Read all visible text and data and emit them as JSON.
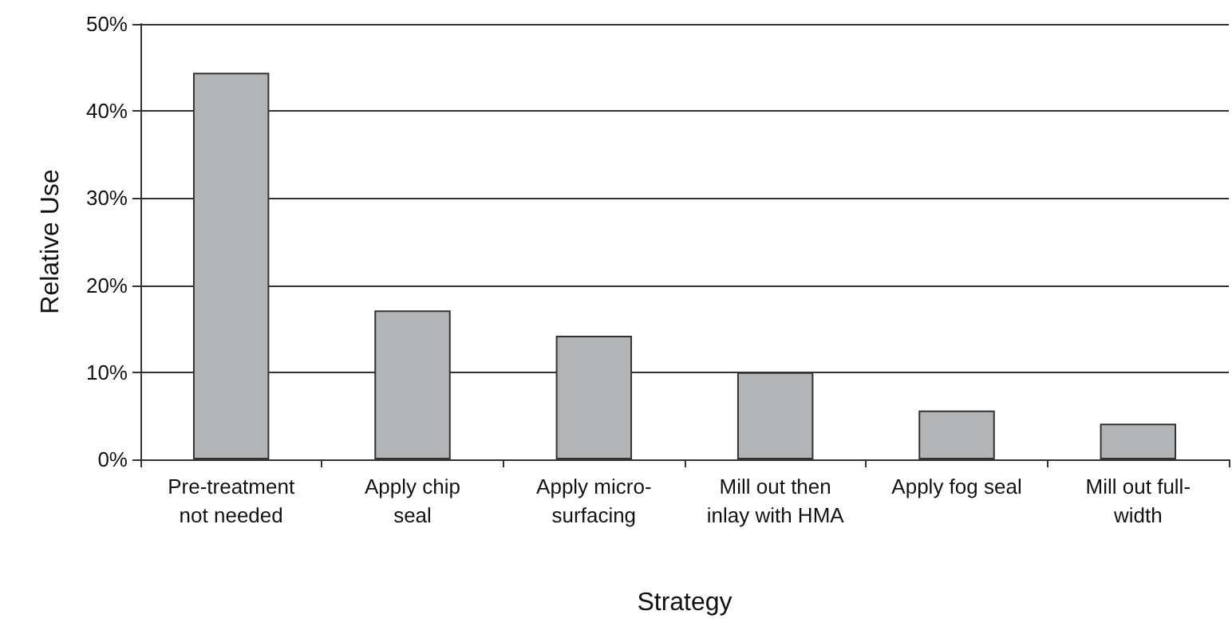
{
  "chart_data": {
    "type": "bar",
    "xlabel": "Strategy",
    "ylabel": "Relative Use",
    "categories": [
      "Pre-treatment not needed",
      "Apply chip seal",
      "Apply micro-surfacing",
      "Mill out then inlay with HMA",
      "Apply fog seal",
      "Mill out full-width"
    ],
    "values": [
      44.4,
      17.1,
      14.2,
      10.0,
      5.6,
      4.1
    ],
    "color": "#b3b4b6",
    "ylim": [
      0,
      50
    ],
    "yticks": [
      {
        "value": 0,
        "label": "0%"
      },
      {
        "value": 10,
        "label": "10%"
      },
      {
        "value": 20,
        "label": "20%"
      },
      {
        "value": 30,
        "label": "30%"
      },
      {
        "value": 40,
        "label": "40%"
      },
      {
        "value": 50,
        "label": "50%"
      }
    ],
    "grid": "y"
  }
}
